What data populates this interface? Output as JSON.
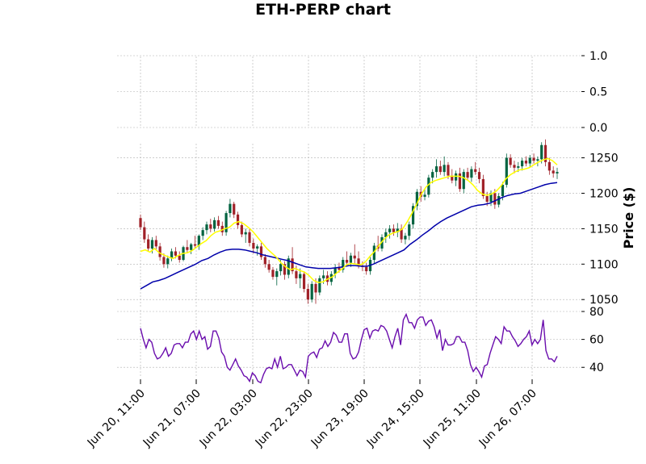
{
  "chart_data": {
    "type": "candlestick",
    "title": "ETH-PERP chart",
    "ylabel": "Price ($)",
    "xlabel": "",
    "grid": true,
    "colors": {
      "up": "#006340",
      "down": "#a02128",
      "ma_short": "#ffff00",
      "ma_long": "#0000aa",
      "rsi": "#6a0dad",
      "grid": "#b0b0b0"
    },
    "x_tick_labels": [
      "Jun 20, 11:00",
      "Jun 21, 07:00",
      "Jun 22, 03:00",
      "Jun 22, 23:00",
      "Jun 23, 19:00",
      "Jun 24, 15:00",
      "Jun 25, 11:00",
      "Jun 26, 07:00"
    ],
    "x_tick_hours": [
      0,
      20,
      40,
      60,
      80,
      100,
      120,
      140
    ],
    "price_panel": {
      "ylim": [
        1040,
        1270
      ],
      "ticks": [
        "1050",
        "1100",
        "1150",
        "1200",
        "1250"
      ],
      "tick_values": [
        1050,
        1100,
        1150,
        1200,
        1250
      ],
      "candles_ohlc": [
        [
          1165,
          1170,
          1148,
          1152
        ],
        [
          1152,
          1160,
          1130,
          1135
        ],
        [
          1135,
          1142,
          1118,
          1122
        ],
        [
          1122,
          1138,
          1115,
          1134
        ],
        [
          1134,
          1140,
          1120,
          1125
        ],
        [
          1125,
          1130,
          1105,
          1110
        ],
        [
          1110,
          1115,
          1095,
          1100
        ],
        [
          1100,
          1112,
          1094,
          1108
        ],
        [
          1108,
          1122,
          1104,
          1118
        ],
        [
          1118,
          1124,
          1108,
          1112
        ],
        [
          1112,
          1118,
          1102,
          1106
        ],
        [
          1106,
          1126,
          1104,
          1124
        ],
        [
          1124,
          1134,
          1116,
          1120
        ],
        [
          1120,
          1130,
          1114,
          1128
        ],
        [
          1128,
          1140,
          1122,
          1126
        ],
        [
          1126,
          1142,
          1120,
          1140
        ],
        [
          1140,
          1152,
          1134,
          1148
        ],
        [
          1148,
          1160,
          1142,
          1156
        ],
        [
          1156,
          1164,
          1145,
          1150
        ],
        [
          1150,
          1166,
          1146,
          1162
        ],
        [
          1162,
          1168,
          1150,
          1154
        ],
        [
          1154,
          1160,
          1140,
          1145
        ],
        [
          1145,
          1175,
          1140,
          1172
        ],
        [
          1172,
          1192,
          1166,
          1185
        ],
        [
          1185,
          1188,
          1165,
          1170
        ],
        [
          1170,
          1174,
          1150,
          1155
        ],
        [
          1155,
          1160,
          1138,
          1142
        ],
        [
          1142,
          1150,
          1130,
          1145
        ],
        [
          1145,
          1150,
          1125,
          1130
        ],
        [
          1130,
          1136,
          1115,
          1122
        ],
        [
          1122,
          1128,
          1112,
          1125
        ],
        [
          1125,
          1130,
          1106,
          1110
        ],
        [
          1110,
          1114,
          1095,
          1100
        ],
        [
          1100,
          1106,
          1088,
          1092
        ],
        [
          1092,
          1096,
          1078,
          1082
        ],
        [
          1082,
          1094,
          1070,
          1090
        ],
        [
          1090,
          1106,
          1084,
          1100
        ],
        [
          1100,
          1104,
          1078,
          1085
        ],
        [
          1085,
          1112,
          1080,
          1108
        ],
        [
          1108,
          1124,
          1086,
          1090
        ],
        [
          1090,
          1098,
          1072,
          1080
        ],
        [
          1080,
          1094,
          1066,
          1086
        ],
        [
          1086,
          1090,
          1060,
          1065
        ],
        [
          1065,
          1072,
          1044,
          1050
        ],
        [
          1050,
          1076,
          1046,
          1072
        ],
        [
          1072,
          1080,
          1044,
          1060
        ],
        [
          1060,
          1084,
          1056,
          1080
        ],
        [
          1080,
          1092,
          1072,
          1084
        ],
        [
          1084,
          1090,
          1070,
          1075
        ],
        [
          1075,
          1090,
          1070,
          1086
        ],
        [
          1086,
          1100,
          1080,
          1095
        ],
        [
          1095,
          1102,
          1088,
          1092
        ],
        [
          1092,
          1110,
          1088,
          1106
        ],
        [
          1106,
          1118,
          1098,
          1102
        ],
        [
          1102,
          1116,
          1096,
          1112
        ],
        [
          1112,
          1128,
          1100,
          1108
        ],
        [
          1108,
          1118,
          1094,
          1098
        ],
        [
          1098,
          1104,
          1090,
          1096
        ],
        [
          1096,
          1102,
          1085,
          1090
        ],
        [
          1090,
          1110,
          1085,
          1106
        ],
        [
          1106,
          1130,
          1100,
          1126
        ],
        [
          1126,
          1140,
          1118,
          1122
        ],
        [
          1122,
          1142,
          1118,
          1138
        ],
        [
          1138,
          1150,
          1130,
          1145
        ],
        [
          1145,
          1155,
          1136,
          1150
        ],
        [
          1150,
          1156,
          1140,
          1145
        ],
        [
          1145,
          1158,
          1138,
          1150
        ],
        [
          1150,
          1156,
          1130,
          1135
        ],
        [
          1135,
          1144,
          1128,
          1140
        ],
        [
          1140,
          1160,
          1134,
          1156
        ],
        [
          1156,
          1186,
          1150,
          1182
        ],
        [
          1182,
          1206,
          1176,
          1202
        ],
        [
          1202,
          1210,
          1188,
          1195
        ],
        [
          1195,
          1206,
          1190,
          1198
        ],
        [
          1198,
          1226,
          1194,
          1222
        ],
        [
          1222,
          1234,
          1214,
          1230
        ],
        [
          1230,
          1248,
          1222,
          1238
        ],
        [
          1238,
          1246,
          1226,
          1230
        ],
        [
          1230,
          1252,
          1224,
          1240
        ],
        [
          1240,
          1244,
          1220,
          1225
        ],
        [
          1225,
          1234,
          1214,
          1218
        ],
        [
          1218,
          1232,
          1210,
          1228
        ],
        [
          1228,
          1236,
          1202,
          1206
        ],
        [
          1206,
          1234,
          1200,
          1230
        ],
        [
          1230,
          1236,
          1218,
          1222
        ],
        [
          1222,
          1238,
          1216,
          1234
        ],
        [
          1234,
          1244,
          1226,
          1230
        ],
        [
          1230,
          1236,
          1214,
          1220
        ],
        [
          1220,
          1226,
          1192,
          1196
        ],
        [
          1196,
          1202,
          1182,
          1188
        ],
        [
          1188,
          1204,
          1182,
          1200
        ],
        [
          1200,
          1206,
          1178,
          1184
        ],
        [
          1184,
          1200,
          1180,
          1196
        ],
        [
          1196,
          1216,
          1190,
          1212
        ],
        [
          1212,
          1256,
          1208,
          1250
        ],
        [
          1250,
          1255,
          1236,
          1240
        ],
        [
          1240,
          1246,
          1228,
          1236
        ],
        [
          1236,
          1244,
          1230,
          1238
        ],
        [
          1238,
          1250,
          1232,
          1246
        ],
        [
          1246,
          1252,
          1238,
          1242
        ],
        [
          1242,
          1254,
          1236,
          1250
        ],
        [
          1250,
          1256,
          1242,
          1246
        ],
        [
          1246,
          1252,
          1238,
          1248
        ],
        [
          1248,
          1272,
          1242,
          1268
        ],
        [
          1268,
          1276,
          1238,
          1244
        ],
        [
          1244,
          1250,
          1226,
          1232
        ],
        [
          1232,
          1238,
          1222,
          1228
        ],
        [
          1228,
          1236,
          1220,
          1230
        ]
      ],
      "ma_short": [
        1118,
        1120,
        1117,
        1122,
        1116,
        1113,
        1110,
        1108,
        1112,
        1115,
        1116,
        1119,
        1124,
        1129,
        1133,
        1140,
        1145,
        1147,
        1150,
        1152,
        1158,
        1160,
        1157,
        1152,
        1146,
        1138,
        1130,
        1122,
        1116,
        1110,
        1102,
        1096,
        1092,
        1094,
        1091,
        1089,
        1084,
        1077,
        1074,
        1075,
        1079,
        1082,
        1088,
        1093,
        1099,
        1101,
        1100,
        1099,
        1103,
        1111,
        1118,
        1127,
        1135,
        1141,
        1144,
        1146,
        1150,
        1160,
        1172,
        1185,
        1199,
        1209,
        1215,
        1218,
        1220,
        1222,
        1224,
        1224,
        1224,
        1222,
        1218,
        1212,
        1204,
        1199,
        1197,
        1199,
        1203,
        1210,
        1220,
        1226,
        1230,
        1233,
        1234,
        1236,
        1240,
        1244,
        1247,
        1249,
        1246,
        1240
      ],
      "ma_long": [
        1065,
        1070,
        1075,
        1077,
        1080,
        1084,
        1088,
        1092,
        1096,
        1100,
        1105,
        1108,
        1113,
        1117,
        1120,
        1121,
        1121,
        1120,
        1118,
        1116,
        1113,
        1111,
        1109,
        1107,
        1105,
        1102,
        1099,
        1096,
        1095,
        1094,
        1094,
        1094,
        1095,
        1096,
        1098,
        1098,
        1097,
        1097,
        1100,
        1104,
        1108,
        1112,
        1116,
        1120,
        1128,
        1134,
        1141,
        1147,
        1154,
        1160,
        1165,
        1169,
        1173,
        1177,
        1181,
        1183,
        1184,
        1186,
        1190,
        1194,
        1197,
        1199,
        1200,
        1203,
        1206,
        1209,
        1212,
        1214,
        1215
      ]
    },
    "rsi_panel": {
      "ylim": [
        28,
        80
      ],
      "ticks": [
        "40",
        "60",
        "80"
      ],
      "tick_values": [
        40,
        60,
        80
      ],
      "values": [
        68,
        60,
        54,
        60,
        58,
        50,
        46,
        47,
        50,
        54,
        48,
        50,
        56,
        57,
        57,
        54,
        58,
        58,
        64,
        66,
        60,
        66,
        60,
        62,
        53,
        55,
        66,
        66,
        61,
        51,
        48,
        40,
        38,
        42,
        46,
        41,
        38,
        34,
        33,
        30,
        36,
        34,
        30,
        29,
        35,
        39,
        40,
        39,
        46,
        40,
        48,
        39,
        40,
        42,
        42,
        38,
        34,
        38,
        37,
        33,
        48,
        50,
        51,
        47,
        53,
        54,
        59,
        55,
        58,
        65,
        63,
        58,
        58,
        64,
        64,
        50,
        46,
        47,
        51,
        60,
        67,
        68,
        61,
        66,
        67,
        66,
        70,
        69,
        66,
        60,
        54,
        62,
        68,
        56,
        74,
        78,
        72,
        72,
        68,
        74,
        76,
        76,
        70,
        73,
        74,
        69,
        61,
        67,
        52,
        60,
        56,
        56,
        57,
        62,
        62,
        58,
        58,
        52,
        42,
        37,
        40,
        37,
        33,
        41,
        42,
        50,
        56,
        62,
        60,
        57,
        69,
        66,
        66,
        62,
        59,
        55,
        57,
        60,
        62,
        66,
        56,
        60,
        57,
        60,
        74,
        52,
        46,
        46,
        44,
        48
      ]
    },
    "secondary_panel": {
      "ticks": [
        "0.0",
        "0.5",
        "1.0"
      ],
      "tick_values": [
        0.0,
        0.5,
        1.0
      ]
    }
  }
}
